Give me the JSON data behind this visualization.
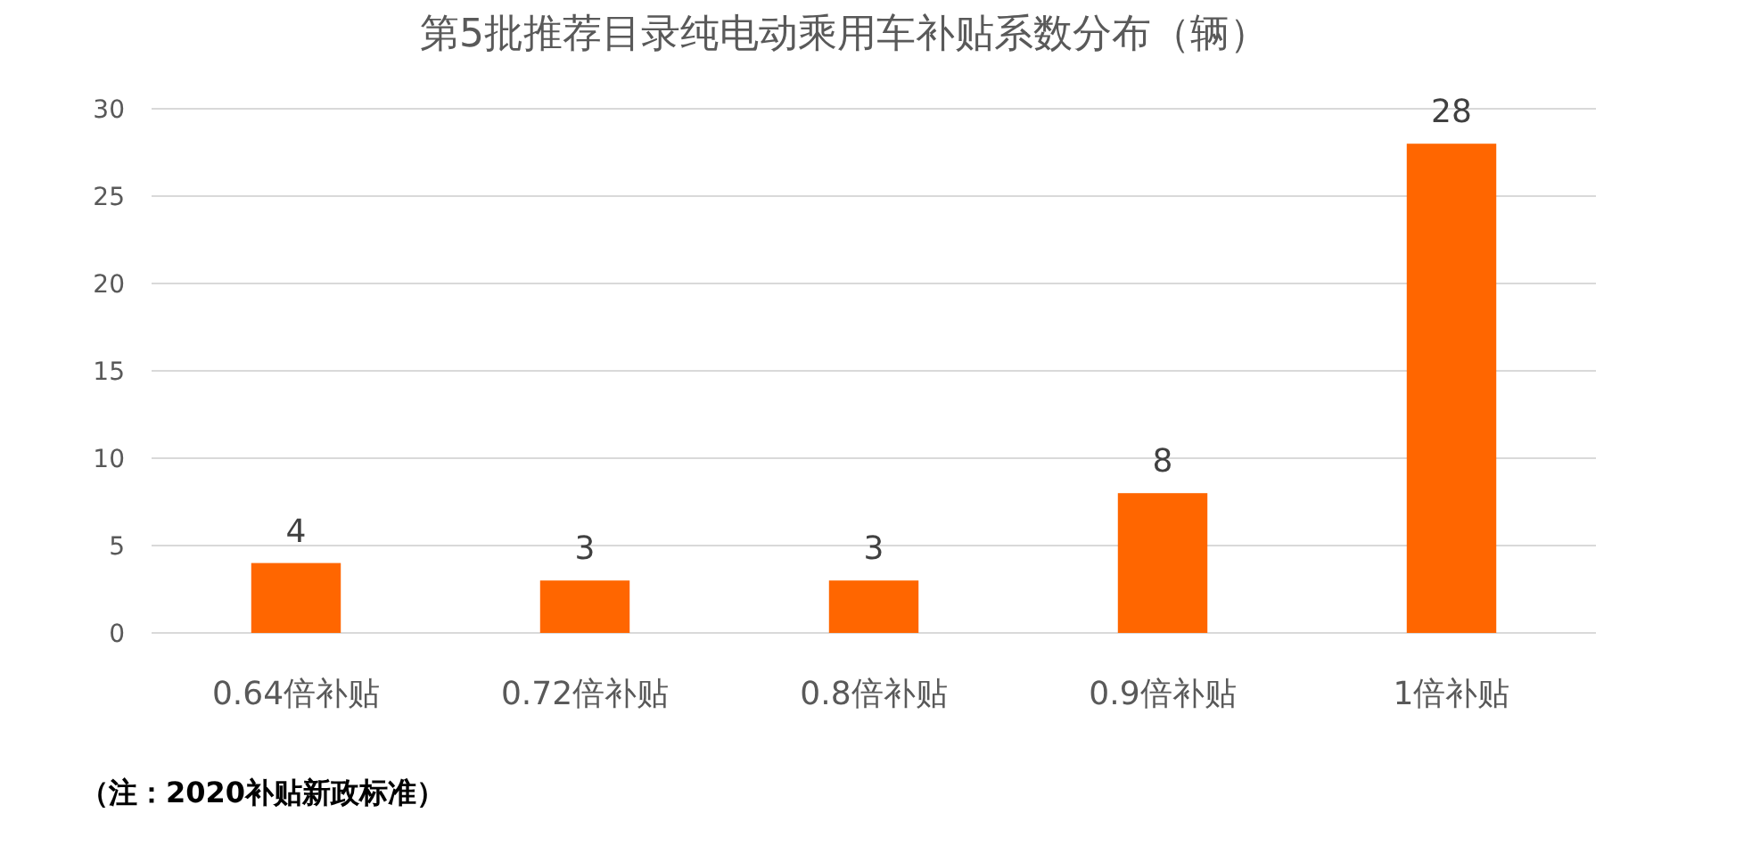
{
  "chart_data": {
    "type": "bar",
    "title": "第5批推荐目录纯电动乘用车补贴系数分布（辆）",
    "categories": [
      "0.64倍补贴",
      "0.72倍补贴",
      "0.8倍补贴",
      "0.9倍补贴",
      "1倍补贴"
    ],
    "values": [
      4,
      3,
      3,
      8,
      28
    ],
    "color": "#ff6600",
    "ylim": [
      0,
      30
    ],
    "yticks": [
      0,
      5,
      10,
      15,
      20,
      25,
      30
    ],
    "grid": "y",
    "data_labels": true,
    "annotations": [
      "（注：2020补贴新政标准）"
    ]
  }
}
